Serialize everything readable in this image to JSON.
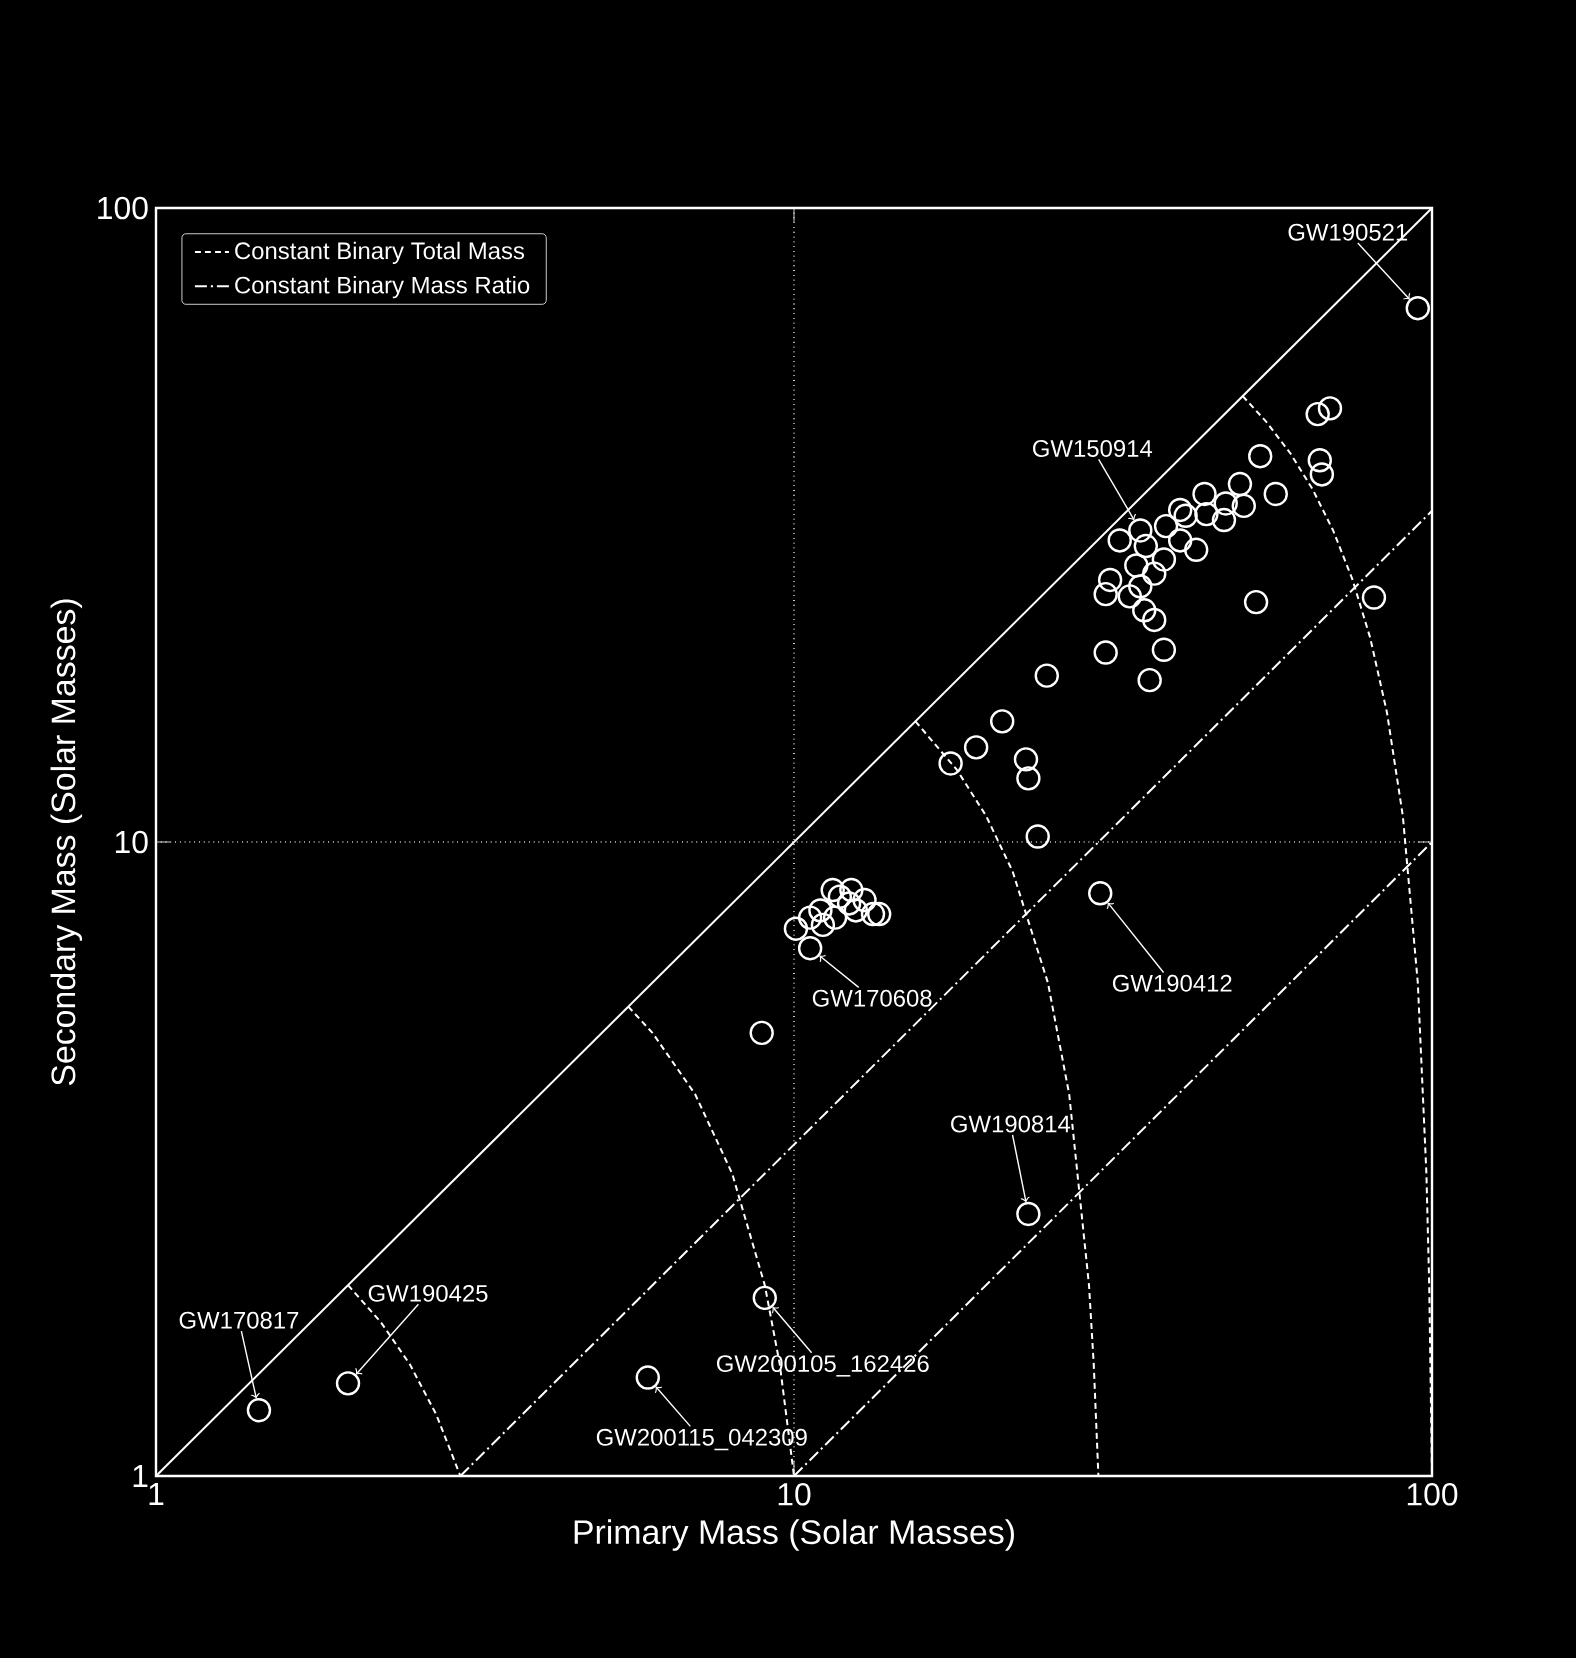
{
  "chart_data": {
    "type": "scatter",
    "xlabel": "Primary Mass (Solar Masses)",
    "ylabel": "Secondary Mass (Solar Masses)",
    "xlim": [
      1,
      100
    ],
    "ylim": [
      1,
      100
    ],
    "xticks": [
      1,
      10,
      100
    ],
    "yticks": [
      1,
      10,
      100
    ],
    "log": "xy",
    "grid": true,
    "legend": "top left",
    "series": [
      {
        "marker": "circle",
        "color": "#ffffff",
        "x": [
          95,
          1.45,
          2.0,
          5.9,
          9.0,
          23.3,
          30.2,
          10.6,
          8.9,
          34.9,
          10.07,
          10.6,
          11.0,
          11.1,
          11.5,
          11.8,
          12.2,
          12.5,
          12.9,
          13.3,
          13.6,
          11.6,
          12.3,
          17.6,
          19.3,
          21.2,
          23.1,
          23.3,
          24.1,
          24.9,
          30.8,
          36.1,
          38.0,
          53.0,
          81.1,
          66.2,
          69.2,
          66.7,
          67.2,
          53.8,
          56.9,
          50.0,
          50.7,
          47.5,
          47.2,
          44.0,
          41.1,
          42.7,
          40.3,
          38.0,
          35.6,
          34.4,
          36.7,
          34.9,
          31.3,
          32.4,
          33.6,
          36.7,
          35.4,
          38.3,
          40.3,
          44.3,
          30.8
        ],
        "values": [
          69.5,
          1.27,
          1.4,
          1.43,
          1.91,
          2.59,
          8.3,
          6.8,
          5.0,
          31,
          7.3,
          7.6,
          7.8,
          7.4,
          8.4,
          8.2,
          8.0,
          7.8,
          8.1,
          7.7,
          7.7,
          7.6,
          8.4,
          13.3,
          14.1,
          15.5,
          13.5,
          12.6,
          10.2,
          18.3,
          19.9,
          18.0,
          20.1,
          23.9,
          24.3,
          47.3,
          48.3,
          40.0,
          38.0,
          40.6,
          35.4,
          36.7,
          33.9,
          34.2,
          32.2,
          35.4,
          32.7,
          28.9,
          29.9,
          27.9,
          29.3,
          27.3,
          26.5,
          25.3,
          25.9,
          29.9,
          24.4,
          22.4,
          23.2,
          31.5,
          33.4,
          32.9,
          24.6
        ]
      },
      {
        "type": "line",
        "color": "#ffffff",
        "line_style": "solid",
        "x": [
          1,
          100
        ],
        "values": [
          1,
          100
        ]
      },
      {
        "type": "line",
        "name": "Constant Binary Total Mass",
        "color": "#ffffff",
        "line_style": "dashed",
        "x": [
          2,
          2.25,
          2.5,
          2.75,
          3
        ],
        "values": [
          2,
          1.75,
          1.5,
          1.25,
          1
        ]
      },
      {
        "type": "line",
        "color": "#ffffff",
        "line_style": "dashed",
        "x": [
          5.5,
          6,
          7,
          8,
          9,
          9.5,
          10
        ],
        "values": [
          5.5,
          5,
          4,
          3,
          2,
          1.5,
          1
        ]
      },
      {
        "type": "line",
        "color": "#ffffff",
        "line_style": "dashed",
        "x": [
          15.5,
          18,
          20,
          22,
          25,
          27,
          29,
          29.5,
          30
        ],
        "values": [
          15.5,
          13,
          11,
          9,
          6,
          4,
          2,
          1.5,
          1
        ]
      },
      {
        "type": "line",
        "color": "#ffffff",
        "line_style": "dashed",
        "x": [
          50.5,
          55,
          60,
          65,
          70,
          75,
          80,
          85,
          90,
          95,
          98,
          99,
          100
        ],
        "values": [
          50.5,
          46,
          41,
          36,
          31,
          26,
          21,
          16,
          11,
          6,
          3,
          2,
          1
        ]
      },
      {
        "type": "line",
        "name": "Constant Binary Mass Ratio",
        "color": "#ffffff",
        "line_style": "dashdot",
        "x": [
          3,
          100
        ],
        "values": [
          1,
          33.3
        ]
      },
      {
        "type": "line",
        "color": "#ffffff",
        "line_style": "dashdot",
        "x": [
          10,
          100
        ],
        "values": [
          1,
          10
        ]
      }
    ],
    "annotations": [
      {
        "text": "GW190521",
        "x": 95,
        "y": 69.5
      },
      {
        "text": "GW150914",
        "x": 34.9,
        "y": 31
      },
      {
        "text": "GW170608",
        "x": 10.6,
        "y": 6.8
      },
      {
        "text": "GW190412",
        "x": 30.2,
        "y": 8.3
      },
      {
        "text": "GW190814",
        "x": 23.3,
        "y": 2.59
      },
      {
        "text": "GW200105_162426",
        "x": 9.0,
        "y": 1.91
      },
      {
        "text": "GW200115_042309",
        "x": 5.9,
        "y": 1.43
      },
      {
        "text": "GW190425",
        "x": 2.0,
        "y": 1.4
      },
      {
        "text": "GW170817",
        "x": 1.45,
        "y": 1.27
      }
    ]
  }
}
